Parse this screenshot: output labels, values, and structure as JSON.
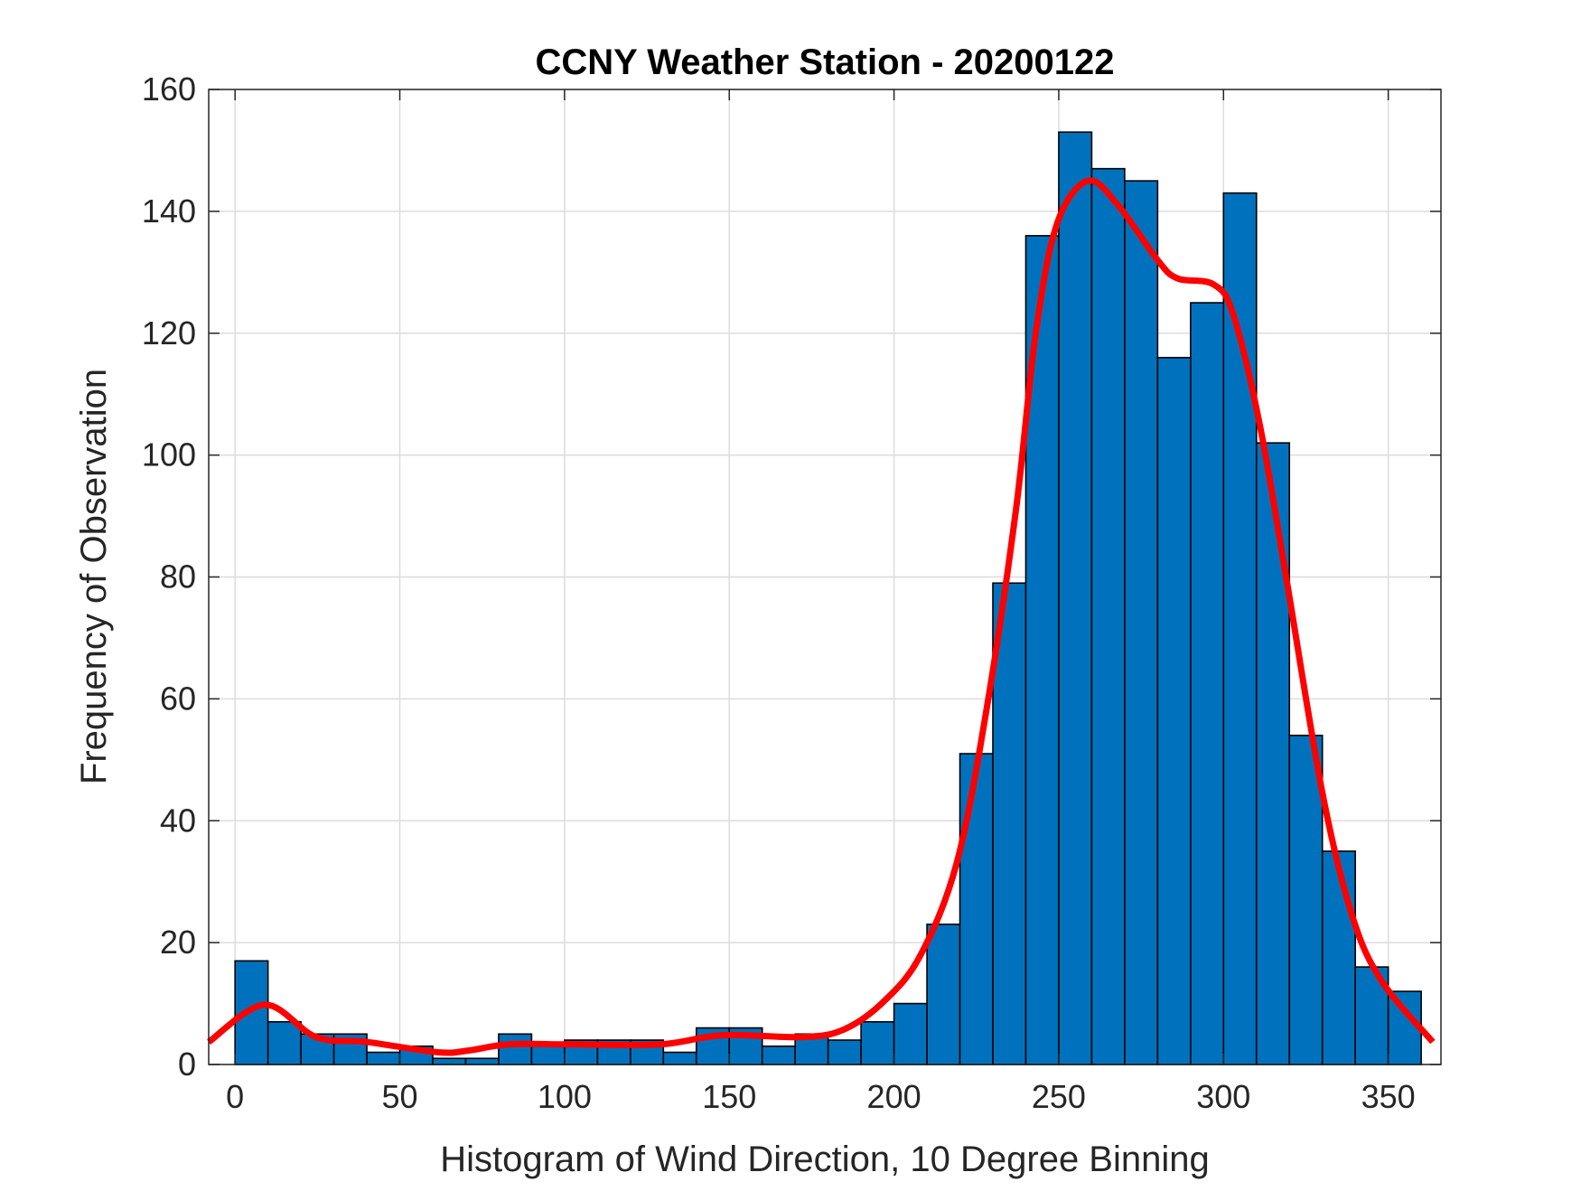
{
  "chart_data": {
    "type": "bar",
    "title": "CCNY Weather Station - 20200122",
    "xlabel": "Histogram of Wind Direction, 10 Degree Binning",
    "ylabel": "Frequency of Observation",
    "xlim": [
      -8,
      366
    ],
    "ylim": [
      0,
      160
    ],
    "xticks": [
      0,
      50,
      100,
      150,
      200,
      250,
      300,
      350
    ],
    "yticks": [
      0,
      20,
      40,
      60,
      80,
      100,
      120,
      140,
      160
    ],
    "grid": true,
    "bin_width": 10,
    "bin_edges_start": 0,
    "values": [
      17,
      7,
      5,
      5,
      2,
      3,
      1,
      1,
      5,
      3,
      4,
      4,
      4,
      2,
      6,
      6,
      3,
      5,
      4,
      7,
      10,
      23,
      51,
      79,
      136,
      153,
      147,
      145,
      116,
      125,
      143,
      102,
      54,
      35,
      16,
      12
    ],
    "bar_color": "#0072BD",
    "series": [
      {
        "name": "density fit",
        "color": "#FF0000",
        "x": [
          -8,
          9,
          24.6,
          40,
          61.6,
          71,
          83,
          102,
          129,
          148,
          172.5,
          185,
          197,
          208,
          219,
          228,
          237,
          243,
          249.5,
          258.8,
          268,
          280,
          286,
          297,
          303,
          311,
          319,
          330,
          339,
          348,
          363.5
        ],
        "y": [
          3.7,
          9.8,
          4.5,
          3.7,
          2,
          2.3,
          3.3,
          3.3,
          3.3,
          4.8,
          4.5,
          5.8,
          10.4,
          17.9,
          33,
          58,
          91,
          120,
          138,
          145,
          141,
          132,
          129,
          128,
          123,
          105,
          80,
          44.6,
          24.5,
          13.7,
          3.7
        ]
      }
    ]
  }
}
